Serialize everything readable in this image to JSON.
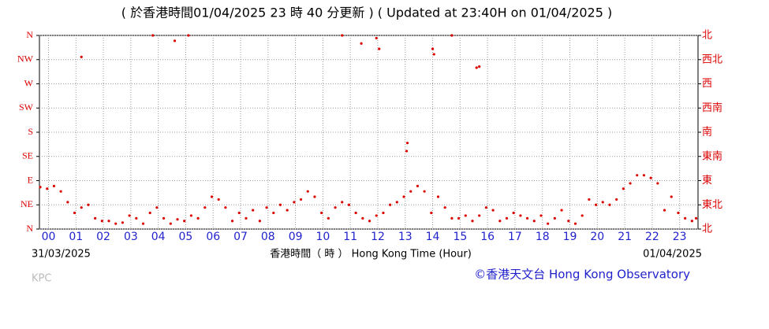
{
  "chart_data": {
    "type": "scatter",
    "title": "( 於香港時間01/04/2025 23 時 40 分更新 ) ( Updated at 23:40H on 01/04/2025 )",
    "x_label": "香港時間（ 時 ） Hong Kong Time (Hour)",
    "date_start": "31/03/2025",
    "date_end": "01/04/2025",
    "station": "KPC",
    "source": "©香港天文台 Hong Kong Observatory",
    "color": "#dd0000",
    "grid": true,
    "xlim": [
      -0.33,
      23.67
    ],
    "xticks": [
      {
        "value": 0,
        "label": "00"
      },
      {
        "value": 1,
        "label": "01"
      },
      {
        "value": 2,
        "label": "02"
      },
      {
        "value": 3,
        "label": "03"
      },
      {
        "value": 4,
        "label": "04"
      },
      {
        "value": 5,
        "label": "05"
      },
      {
        "value": 6,
        "label": "06"
      },
      {
        "value": 7,
        "label": "07"
      },
      {
        "value": 8,
        "label": "08"
      },
      {
        "value": 9,
        "label": "09"
      },
      10,
      11,
      12,
      13,
      14,
      15,
      16,
      17,
      18,
      19,
      20,
      21,
      22,
      23
    ],
    "ylim": [
      0,
      360
    ],
    "yticks": [
      {
        "value": 0,
        "label": "N"
      },
      {
        "value": 45,
        "label": "NE"
      },
      {
        "value": 90,
        "label": "E"
      },
      {
        "value": 135,
        "label": "SE"
      },
      {
        "value": 180,
        "label": "S"
      },
      {
        "value": 225,
        "label": "SW"
      },
      {
        "value": 270,
        "label": "W"
      },
      {
        "value": 315,
        "label": "NW"
      },
      {
        "value": 360,
        "label": "N"
      }
    ],
    "y2lim": [
      0,
      360
    ],
    "y2ticks": [
      {
        "value": 0,
        "label": "北"
      },
      {
        "value": 45,
        "label": "東北"
      },
      {
        "value": 90,
        "label": "東"
      },
      {
        "value": 135,
        "label": "東南"
      },
      {
        "value": 180,
        "label": "南"
      },
      {
        "value": 225,
        "label": "西南"
      },
      {
        "value": 270,
        "label": "西"
      },
      {
        "value": 315,
        "label": "西北"
      },
      {
        "value": 360,
        "label": "北"
      }
    ],
    "x": [
      -0.3,
      -0.05,
      0.2,
      0.45,
      0.7,
      0.95,
      1.2,
      1.45,
      1.7,
      1.95,
      2.2,
      2.45,
      2.7,
      2.95,
      3.2,
      3.45,
      3.7,
      3.95,
      4.2,
      4.45,
      4.7,
      4.95,
      5.2,
      5.45,
      5.7,
      5.95,
      6.2,
      6.45,
      6.7,
      6.95,
      7.2,
      7.45,
      7.7,
      7.95,
      8.2,
      8.45,
      8.7,
      8.95,
      9.2,
      9.45,
      9.7,
      9.95,
      10.2,
      10.45,
      10.7,
      10.95,
      11.2,
      11.45,
      11.7,
      11.95,
      12.2,
      12.45,
      12.7,
      12.95,
      13.2,
      13.45,
      13.7,
      13.95,
      14.2,
      14.45,
      14.7,
      14.95,
      15.2,
      15.45,
      15.7,
      15.95,
      16.2,
      16.45,
      16.7,
      16.95,
      17.2,
      17.45,
      17.7,
      17.95,
      18.2,
      18.45,
      18.7,
      18.95,
      19.2,
      19.45,
      19.7,
      19.95,
      20.2,
      20.45,
      20.7,
      20.95,
      21.2,
      21.45,
      21.7,
      21.95,
      22.2,
      22.45,
      22.7,
      22.95,
      23.2,
      23.45,
      23.6,
      1.2,
      3.8,
      4.6,
      5.1,
      10.7,
      11.4,
      11.95,
      12.05,
      13.05,
      13.08,
      14.0,
      14.05,
      14.7,
      15.6,
      15.7
    ],
    "values": [
      78,
      75,
      80,
      70,
      50,
      30,
      40,
      45,
      20,
      15,
      15,
      10,
      12,
      25,
      20,
      10,
      30,
      40,
      20,
      10,
      18,
      15,
      25,
      20,
      40,
      60,
      55,
      40,
      15,
      30,
      20,
      35,
      15,
      40,
      30,
      45,
      35,
      50,
      55,
      70,
      60,
      30,
      20,
      40,
      50,
      45,
      30,
      20,
      15,
      25,
      30,
      45,
      50,
      60,
      70,
      80,
      70,
      30,
      60,
      40,
      20,
      20,
      25,
      15,
      25,
      40,
      35,
      15,
      20,
      30,
      25,
      20,
      15,
      25,
      10,
      20,
      35,
      15,
      10,
      25,
      55,
      45,
      50,
      45,
      55,
      75,
      85,
      100,
      100,
      95,
      85,
      35,
      60,
      30,
      20,
      15,
      20,
      320,
      360,
      350,
      360,
      360,
      345,
      355,
      335,
      145,
      160,
      335,
      325,
      360,
      300,
      302
    ]
  }
}
